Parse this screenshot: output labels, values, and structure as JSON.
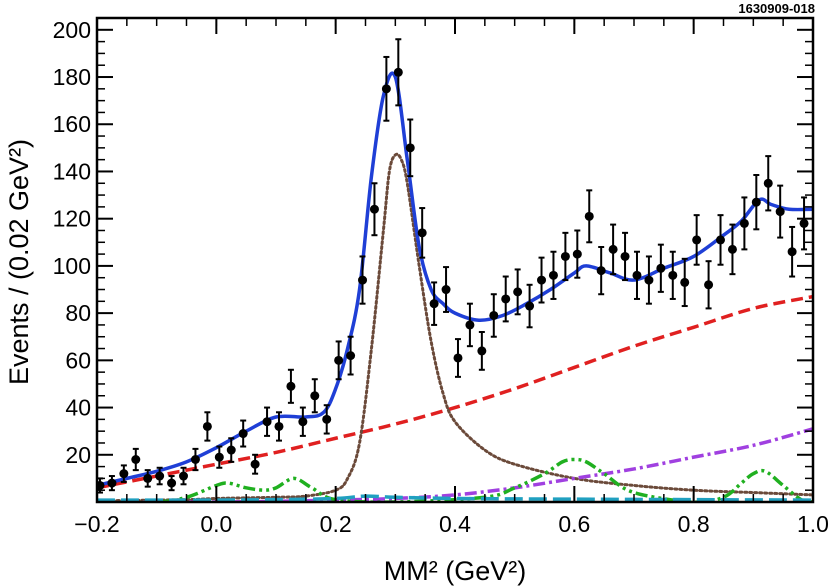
{
  "figure_id": "1630909-018",
  "chart_data": {
    "type": "scatter",
    "xlabel": "MM² (GeV²)",
    "ylabel": "Events / (0.02 GeV²)",
    "xlim": [
      -0.2,
      1.0
    ],
    "ylim": [
      0,
      205
    ],
    "x_ticks": [
      -0.2,
      0.0,
      0.2,
      0.4,
      0.6,
      0.8,
      1.0
    ],
    "x_tick_labels": [
      "−0.2",
      "0.0",
      "0.2",
      "0.4",
      "0.6",
      "0.8",
      "1.0"
    ],
    "y_ticks": [
      20,
      40,
      60,
      80,
      100,
      120,
      140,
      160,
      180,
      200
    ],
    "y_tick_labels": [
      "20",
      "40",
      "60",
      "80",
      "100",
      "120",
      "140",
      "160",
      "180",
      "200"
    ],
    "grid": false,
    "legend": "none",
    "data_points": {
      "x": [
        -0.195,
        -0.175,
        -0.155,
        -0.135,
        -0.115,
        -0.095,
        -0.075,
        -0.055,
        -0.035,
        -0.015,
        0.005,
        0.025,
        0.045,
        0.065,
        0.085,
        0.105,
        0.125,
        0.145,
        0.165,
        0.185,
        0.205,
        0.225,
        0.245,
        0.265,
        0.285,
        0.305,
        0.325,
        0.345,
        0.365,
        0.385,
        0.405,
        0.425,
        0.445,
        0.465,
        0.485,
        0.505,
        0.525,
        0.545,
        0.565,
        0.585,
        0.605,
        0.625,
        0.645,
        0.665,
        0.685,
        0.705,
        0.725,
        0.745,
        0.765,
        0.785,
        0.805,
        0.825,
        0.845,
        0.865,
        0.885,
        0.905,
        0.925,
        0.945,
        0.965,
        0.985
      ],
      "y": [
        7,
        8,
        12,
        18,
        10,
        11,
        8,
        11,
        18,
        32,
        19,
        22,
        29,
        16,
        34,
        32,
        49,
        34,
        45,
        35,
        60,
        62,
        94,
        124,
        175,
        182,
        150,
        114,
        84,
        90,
        61,
        75,
        64,
        79,
        86,
        89,
        83,
        94,
        96,
        104,
        105,
        121,
        98,
        107,
        104,
        96,
        94,
        99,
        96,
        93,
        111,
        92,
        111,
        107,
        118,
        127,
        135,
        123,
        106,
        118
      ],
      "yerr": [
        3,
        3,
        3.5,
        4.5,
        3.5,
        3.5,
        3,
        3.5,
        4.5,
        6,
        4.5,
        5,
        5.5,
        4,
        6,
        6,
        7,
        6,
        7,
        6,
        8,
        8,
        10,
        11,
        13.5,
        14,
        12,
        10.5,
        9,
        9.5,
        8,
        9,
        8,
        9,
        9.5,
        9.5,
        9,
        9.5,
        10,
        10,
        10,
        11,
        10,
        10.5,
        10,
        10,
        10,
        10,
        10,
        10,
        10.5,
        10,
        10.5,
        10.5,
        11,
        11.5,
        11.5,
        11,
        10.5,
        11
      ]
    },
    "series": [
      {
        "style": "solid",
        "color": "#1f3fd6",
        "x": [
          -0.2,
          -0.15,
          -0.1,
          -0.05,
          0.0,
          0.05,
          0.1,
          0.15,
          0.18,
          0.2,
          0.22,
          0.24,
          0.26,
          0.28,
          0.3,
          0.32,
          0.34,
          0.36,
          0.38,
          0.4,
          0.44,
          0.48,
          0.52,
          0.56,
          0.6,
          0.62,
          0.66,
          0.7,
          0.75,
          0.8,
          0.85,
          0.88,
          0.91,
          0.93,
          0.96,
          1.0
        ],
        "y": [
          7,
          10,
          13,
          17,
          23,
          30,
          36,
          36,
          38,
          48,
          65,
          90,
          138,
          172,
          180,
          145,
          108,
          90,
          84,
          80,
          77,
          79,
          84,
          90,
          97,
          100,
          97,
          94,
          99,
          104,
          113,
          119,
          128,
          126,
          124,
          124
        ]
      },
      {
        "style": "dashed",
        "color": "#e02020",
        "x": [
          -0.2,
          -0.1,
          0.0,
          0.1,
          0.2,
          0.3,
          0.4,
          0.5,
          0.6,
          0.7,
          0.8,
          0.9,
          1.0
        ],
        "y": [
          6,
          11,
          16,
          21,
          27,
          33,
          40,
          48,
          57,
          66,
          74,
          82,
          87
        ]
      },
      {
        "style": "dotted",
        "color": "#6b4a3a",
        "x": [
          -0.2,
          -0.05,
          0.0,
          0.1,
          0.15,
          0.2,
          0.22,
          0.24,
          0.26,
          0.28,
          0.29,
          0.3,
          0.31,
          0.32,
          0.34,
          0.36,
          0.38,
          0.4,
          0.45,
          0.5,
          0.6,
          0.7,
          0.8,
          0.9,
          1.0
        ],
        "y": [
          0.5,
          1,
          1.5,
          2,
          2.5,
          5,
          10,
          25,
          65,
          115,
          140,
          147,
          145,
          135,
          100,
          68,
          46,
          34,
          22,
          16,
          10,
          7,
          5,
          4,
          3
        ]
      },
      {
        "style": "dash-dot",
        "color": "#a040e0",
        "x": [
          -0.2,
          0.0,
          0.1,
          0.2,
          0.3,
          0.4,
          0.5,
          0.6,
          0.7,
          0.8,
          0.9,
          1.0
        ],
        "y": [
          0,
          0,
          0.3,
          0.8,
          1.5,
          3,
          6,
          10,
          14,
          19,
          24,
          31
        ]
      },
      {
        "style": "dash-dot-dot",
        "color": "#20b020",
        "x": [
          -0.2,
          -0.1,
          -0.05,
          0.0,
          0.02,
          0.05,
          0.08,
          0.1,
          0.13,
          0.16,
          0.2,
          0.3,
          0.45,
          0.5,
          0.55,
          0.58,
          0.6,
          0.62,
          0.65,
          0.7,
          0.8,
          0.85,
          0.88,
          0.9,
          0.92,
          0.95,
          0.98,
          1.0
        ],
        "y": [
          0,
          0,
          2,
          7,
          8,
          6,
          5,
          6,
          10,
          6,
          1,
          0,
          2,
          6,
          12,
          17,
          18,
          17,
          12,
          4,
          0,
          2,
          8,
          12,
          13,
          7,
          1,
          0
        ]
      },
      {
        "style": "long-dash",
        "color": "#20a0c0",
        "x": [
          -0.2,
          0.0,
          0.1,
          0.2,
          0.25,
          0.3,
          0.4,
          0.6,
          0.8,
          1.0
        ],
        "y": [
          0.8,
          0.8,
          1,
          1.5,
          2.5,
          2,
          1.5,
          1.2,
          1,
          0.8
        ]
      }
    ]
  }
}
